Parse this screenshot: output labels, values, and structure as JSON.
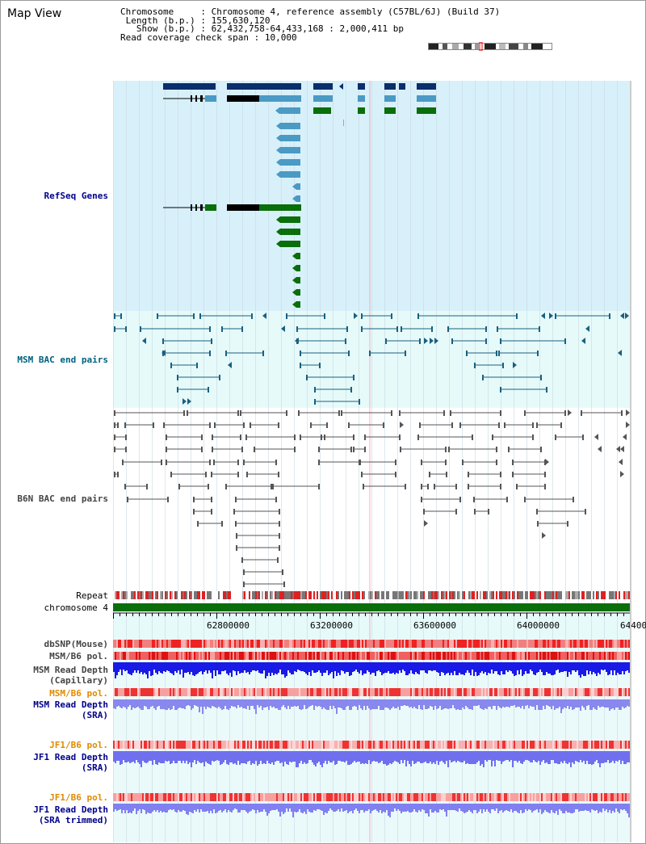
{
  "window": {
    "title": "Map View"
  },
  "info": {
    "chromosome_key": "Chromosome",
    "chromosome_value": "Chromosome 4, reference assembly (C57BL/6J) (Build 37)",
    "length_key": "Length (b.p.)",
    "length_value": "155,630,120",
    "show_key": "Show (b.p.)",
    "show_value": "62,432,758-64,433,168 : 2,000,411 bp",
    "coverage_key": "Read coverage check span",
    "coverage_value": "10,000"
  },
  "tracks": {
    "refseq": "RefSeq Genes",
    "msm_bac": "MSM BAC end pairs",
    "b6n_bac": "B6N BAC end pairs",
    "repeat": "Repeat",
    "chromosome": "chromosome 4",
    "dbsnp": "dbSNP(Mouse)",
    "msm_b6_pol": "MSM/B6 pol.",
    "msm_depth_cap": "MSM Read Depth\n(Capillary)",
    "msm_b6_pol_sra": "MSM/B6 pol.",
    "msm_depth_sra": "MSM Read Depth\n(SRA)",
    "jf1_b6_pol": "JF1/B6 pol.",
    "jf1_depth_sra": "JF1 Read Depth\n(SRA)",
    "jf1_b6_pol_trim": "JF1/B6 pol.",
    "jf1_depth_trim": "JF1 Read Depth\n(SRA trimmed)"
  },
  "axis": {
    "ticks": [
      "62800000",
      "63200000",
      "63600000",
      "64000000",
      "64400"
    ]
  },
  "colors": {
    "refseq_bg": "#d8f0fa",
    "bac_bg": "#e6fafa",
    "gene_dark": "#0a2f6b",
    "gene_light": "#4a9ac4",
    "gene_green": "#0a6e0a",
    "bac_teal": "#1a6080",
    "bac_gray": "#555555",
    "chrom_green": "#0a6e0a",
    "depth_blue": "#1a1ae6",
    "depth_light": "#8080f0",
    "pol_red": "#ee3333",
    "label_orange": "#e08a00",
    "label_blue": "#00008b"
  }
}
